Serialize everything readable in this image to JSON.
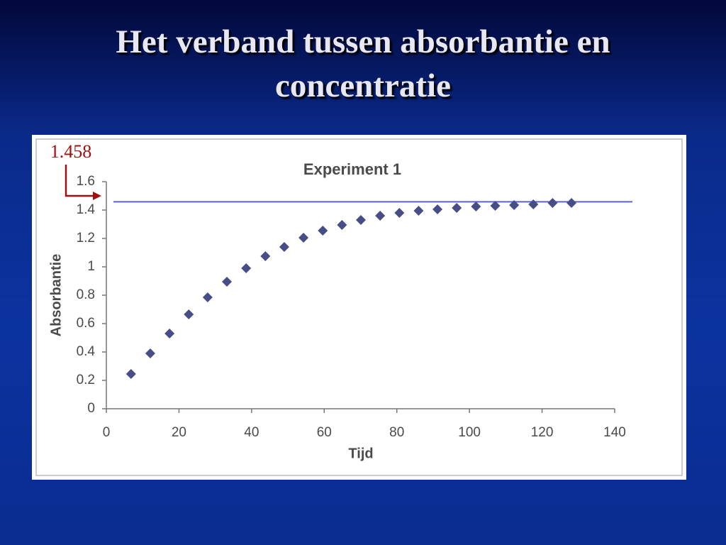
{
  "slide": {
    "title": "Het verband tussen absorbantie en concentratie"
  },
  "chart_data": {
    "type": "scatter",
    "title": "Experiment 1",
    "x_label": "Tijd",
    "y_label": "Absorbantie",
    "x": [
      6.8,
      12.1,
      17.4,
      22.7,
      27.9,
      33.2,
      38.5,
      43.8,
      49.0,
      54.3,
      59.6,
      64.9,
      70.1,
      75.4,
      80.7,
      86.0,
      91.2,
      96.5,
      101.8,
      107.1,
      112.3,
      117.6,
      122.9,
      128.1
    ],
    "values": [
      0.245,
      0.39,
      0.53,
      0.665,
      0.785,
      0.895,
      0.99,
      1.075,
      1.14,
      1.205,
      1.255,
      1.295,
      1.33,
      1.36,
      1.38,
      1.395,
      1.405,
      1.415,
      1.425,
      1.43,
      1.435,
      1.44,
      1.45,
      1.45
    ],
    "color": "#474d86",
    "marker": "diamond",
    "xlim": [
      0,
      140
    ],
    "xticks": [
      0,
      20,
      40,
      60,
      80,
      100,
      120,
      140
    ],
    "ylim": [
      0,
      1.6
    ],
    "yticks": [
      0,
      0.2,
      0.4,
      0.6,
      0.8,
      1,
      1.2,
      1.4,
      1.6
    ],
    "reference_line": {
      "value": 1.458,
      "label": "1.458",
      "color": "#5a63d6"
    }
  }
}
